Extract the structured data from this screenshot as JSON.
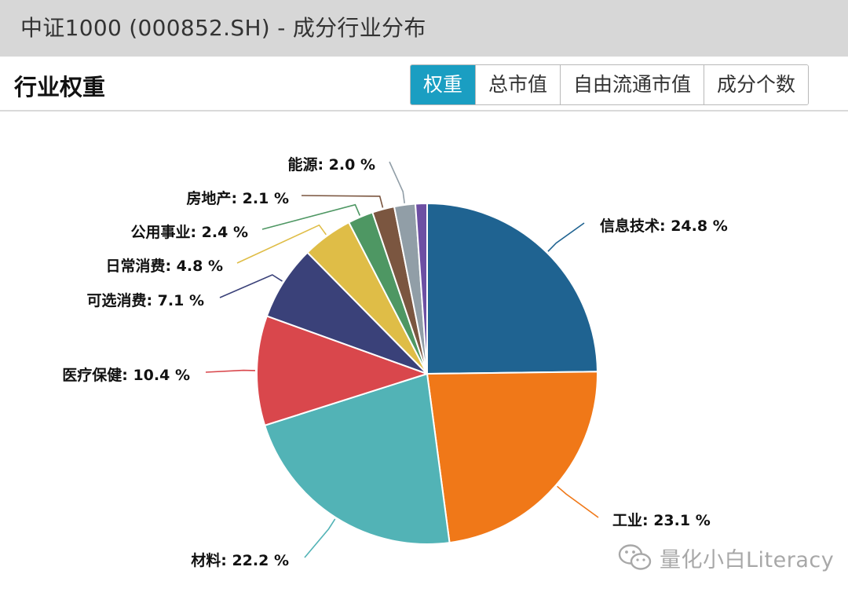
{
  "window": {
    "title": "中证1000 (000852.SH) - 成分行业分布"
  },
  "panel": {
    "title": "行业权重",
    "tabs": [
      {
        "label": "权重",
        "active": true
      },
      {
        "label": "总市值",
        "active": false
      },
      {
        "label": "自由流通市值",
        "active": false
      },
      {
        "label": "成分个数",
        "active": false
      }
    ]
  },
  "chart_data": {
    "type": "pie",
    "title": "",
    "start": "12-o'clock",
    "direction": "clockwise",
    "slices": [
      {
        "label": "信息技术",
        "value": 24.8,
        "display": "信息技术: 24.8 %",
        "color": "#1f6391"
      },
      {
        "label": "工业",
        "value": 23.1,
        "display": "工业: 23.1 %",
        "color": "#f07818"
      },
      {
        "label": "材料",
        "value": 22.2,
        "display": "材料: 22.2 %",
        "color": "#52b3b6"
      },
      {
        "label": "医疗保健",
        "value": 10.4,
        "display": "医疗保健: 10.4 %",
        "color": "#d9474c"
      },
      {
        "label": "可选消费",
        "value": 7.1,
        "display": "可选消费: 7.1 %",
        "color": "#3a4179"
      },
      {
        "label": "日常消费",
        "value": 4.8,
        "display": "日常消费: 4.8 %",
        "color": "#dfbd47"
      },
      {
        "label": "公用事业",
        "value": 2.4,
        "display": "公用事业: 2.4 %",
        "color": "#4e9763"
      },
      {
        "label": "房地产",
        "value": 2.1,
        "display": "房地产: 2.1 %",
        "color": "#7b5640"
      },
      {
        "label": "能源",
        "value": 2.0,
        "display": "能源: 2.0 %",
        "color": "#919ea7"
      },
      {
        "label": "",
        "value": 1.1,
        "display": "",
        "color": "#6d4fa3"
      }
    ]
  },
  "watermark": {
    "text": "量化小白Literacy",
    "icon": "wechat-icon"
  }
}
